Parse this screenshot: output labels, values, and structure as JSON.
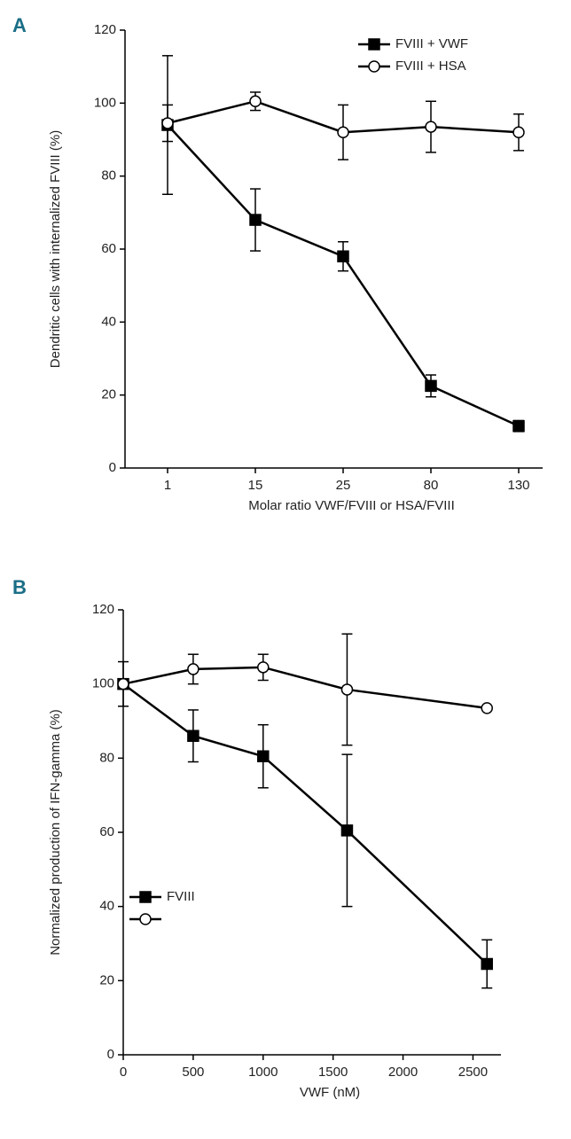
{
  "chart_data": [
    {
      "type": "line",
      "panel_label": "A",
      "x_label": "Molar ratio VWF/FVIII or HSA/FVIII",
      "y_label": "Dendritic cells with internalized FVIII (%)",
      "categories": [
        "1",
        "15",
        "25",
        "80",
        "130"
      ],
      "ylim": [
        0,
        120
      ],
      "yticks": [
        0,
        20,
        40,
        60,
        80,
        100,
        120
      ],
      "legend": "upper right",
      "series": [
        {
          "name": "FVIII + VWF",
          "color": "#000000",
          "marker": "square",
          "values": [
            94,
            68,
            58,
            22.5,
            11.5
          ],
          "errors": [
            19,
            8.5,
            4,
            3,
            1.5
          ]
        },
        {
          "name": "FVIII + HSA",
          "color": "#000000",
          "marker": "circle",
          "values": [
            94.5,
            100.5,
            92,
            93.5,
            92
          ],
          "errors": [
            5,
            2.5,
            7.5,
            7,
            5
          ]
        }
      ]
    },
    {
      "type": "line",
      "panel_label": "B",
      "x_label": "VWF (nM)",
      "y_label": "Normalized production of IFN-gamma (%)",
      "x": [
        0,
        500,
        1000,
        1600,
        2600
      ],
      "xlim": [
        0,
        2700
      ],
      "xticks": [
        0,
        500,
        1000,
        1500,
        2000,
        2500
      ],
      "ylim": [
        0,
        120
      ],
      "yticks": [
        0,
        20,
        40,
        60,
        80,
        100,
        120
      ],
      "legend": "lower left",
      "series": [
        {
          "name": "FVIII",
          "color": "#000000",
          "marker": "square",
          "values": [
            100,
            86,
            80.5,
            60.5,
            24.5
          ],
          "errors": [
            6,
            7,
            8.5,
            20.5,
            6.5
          ]
        },
        {
          "color": "#000000",
          "marker": "circle",
          "values": [
            100,
            104,
            104.5,
            98.5,
            93.5
          ],
          "errors": [
            null,
            4,
            3.5,
            15,
            null
          ]
        }
      ]
    }
  ]
}
